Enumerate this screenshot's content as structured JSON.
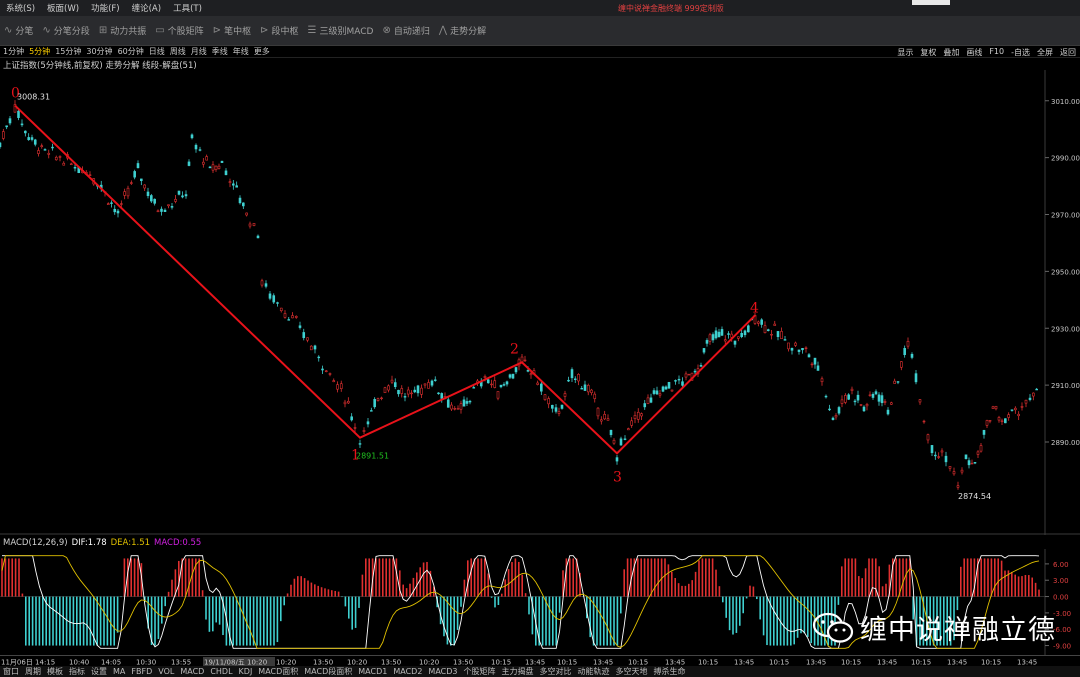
{
  "menu": {
    "items": [
      "系统(S)",
      "板面(W)",
      "功能(F)",
      "缠论(A)",
      "工具(T)"
    ],
    "center_text": "缠中说禅金融终端  999定制版"
  },
  "toolbar": {
    "items": [
      {
        "label": "分笔",
        "icon": "stroke-icon"
      },
      {
        "label": "分笔分段",
        "icon": "segment-icon"
      },
      {
        "label": "动力共振",
        "icon": "grid-icon"
      },
      {
        "label": "个股矩阵",
        "icon": "matrix-icon"
      },
      {
        "label": "笔中枢",
        "icon": "pivot-icon"
      },
      {
        "label": "段中枢",
        "icon": "pivot-icon"
      },
      {
        "label": "三级别MACD",
        "icon": "table-icon"
      },
      {
        "label": "自动递归",
        "icon": "recursion-icon"
      },
      {
        "label": "走势分解",
        "icon": "trend-icon"
      }
    ]
  },
  "periods": {
    "items": [
      "1分钟",
      "5分钟",
      "15分钟",
      "30分钟",
      "60分钟",
      "日线",
      "周线",
      "月线",
      "季线",
      "年线",
      "更多"
    ],
    "active": "5分钟",
    "right": [
      "显示",
      "复权",
      "叠加",
      "画线",
      "F10",
      "-自选",
      "全屏",
      "返回"
    ]
  },
  "chart_title": "上证指数(5分钟线,前复权) 走势分解 线段-解盘(51)",
  "colors": {
    "accent": "#ffd000",
    "segment_line": "#e8121a",
    "up": "#e03030",
    "down": "#3fd0d0",
    "dif": "#ffffff",
    "dea": "#e0c000",
    "macd_label": "#d020e0",
    "price_low_label": "#20c020"
  },
  "chart_data": [
    {
      "type": "candlestick",
      "yaxis_ticks": [
        "3010.00",
        "2990.00",
        "2970.00",
        "2950.00",
        "2930.00",
        "2910.00",
        "2890.00"
      ],
      "ylim": [
        2858,
        3018
      ],
      "segment_points": [
        {
          "label": "0",
          "x": 15,
          "y": 3008.31
        },
        {
          "label": "1",
          "x": 360,
          "y": 2891.51
        },
        {
          "label": "2",
          "x": 522,
          "y": 2918.0
        },
        {
          "label": "3",
          "x": 617,
          "y": 2886.0
        },
        {
          "label": "4",
          "x": 755,
          "y": 2934.5
        }
      ],
      "price_labels": [
        {
          "text": "3008.31",
          "value": 3008.31
        },
        {
          "text": "2891.51",
          "value": 2891.51
        },
        {
          "text": "2874.54",
          "value": 2874.54
        }
      ],
      "price_path": [
        [
          0,
          2995
        ],
        [
          10,
          3004
        ],
        [
          15,
          3008.31
        ],
        [
          22,
          3002
        ],
        [
          32,
          2996
        ],
        [
          45,
          2992
        ],
        [
          60,
          2990
        ],
        [
          75,
          2987
        ],
        [
          90,
          2985
        ],
        [
          105,
          2978
        ],
        [
          118,
          2970
        ],
        [
          128,
          2978
        ],
        [
          138,
          2986
        ],
        [
          148,
          2978
        ],
        [
          158,
          2972
        ],
        [
          172,
          2974
        ],
        [
          186,
          2978
        ],
        [
          192,
          2996
        ],
        [
          200,
          2992
        ],
        [
          210,
          2986
        ],
        [
          222,
          2988
        ],
        [
          230,
          2983
        ],
        [
          240,
          2976
        ],
        [
          250,
          2968
        ],
        [
          258,
          2964
        ],
        [
          262,
          2946
        ],
        [
          270,
          2942
        ],
        [
          285,
          2936
        ],
        [
          300,
          2930
        ],
        [
          315,
          2922
        ],
        [
          330,
          2914
        ],
        [
          345,
          2906
        ],
        [
          355,
          2896
        ],
        [
          360,
          2891.51
        ],
        [
          368,
          2896
        ],
        [
          378,
          2906
        ],
        [
          392,
          2912
        ],
        [
          405,
          2906
        ],
        [
          418,
          2908
        ],
        [
          432,
          2912
        ],
        [
          445,
          2906
        ],
        [
          458,
          2900
        ],
        [
          470,
          2906
        ],
        [
          485,
          2913
        ],
        [
          498,
          2908
        ],
        [
          510,
          2913
        ],
        [
          522,
          2918
        ],
        [
          534,
          2914
        ],
        [
          545,
          2906
        ],
        [
          556,
          2900
        ],
        [
          565,
          2905
        ],
        [
          572,
          2914
        ],
        [
          585,
          2910
        ],
        [
          598,
          2902
        ],
        [
          608,
          2896
        ],
        [
          617,
          2886
        ],
        [
          625,
          2892
        ],
        [
          635,
          2898
        ],
        [
          648,
          2904
        ],
        [
          660,
          2908
        ],
        [
          672,
          2910
        ],
        [
          686,
          2912
        ],
        [
          698,
          2916
        ],
        [
          710,
          2926
        ],
        [
          722,
          2928
        ],
        [
          735,
          2926
        ],
        [
          745,
          2928
        ],
        [
          755,
          2934.5
        ],
        [
          765,
          2931
        ],
        [
          778,
          2928
        ],
        [
          792,
          2924
        ],
        [
          806,
          2922
        ],
        [
          818,
          2916
        ],
        [
          826,
          2908
        ],
        [
          833,
          2898
        ],
        [
          842,
          2904
        ],
        [
          852,
          2908
        ],
        [
          864,
          2902
        ],
        [
          876,
          2908
        ],
        [
          888,
          2902
        ],
        [
          898,
          2912
        ],
        [
          908,
          2926
        ],
        [
          916,
          2914
        ],
        [
          924,
          2898
        ],
        [
          932,
          2888
        ],
        [
          942,
          2886
        ],
        [
          950,
          2882
        ],
        [
          958,
          2874.54
        ],
        [
          966,
          2884
        ],
        [
          975,
          2882
        ],
        [
          984,
          2892
        ],
        [
          993,
          2902
        ],
        [
          1002,
          2897
        ],
        [
          1012,
          2900
        ],
        [
          1022,
          2902
        ],
        [
          1030,
          2905
        ],
        [
          1040,
          2907
        ]
      ],
      "time_labels": [
        "11月06日 14:15",
        "10:40",
        "14:05",
        "10:30",
        "13:55",
        "19/11/08/五 10:20",
        "10:20",
        "13:50",
        "10:20",
        "13:50",
        "10:20",
        "13:50",
        "10:15",
        "13:45",
        "10:15",
        "13:45",
        "10:15",
        "13:45",
        "10:15",
        "13:45",
        "10:15",
        "13:45",
        "10:15",
        "13:45",
        "10:15",
        "13:45"
      ]
    },
    {
      "type": "bar",
      "name": "MACD(12,26,9)",
      "dif": "1.78",
      "dea": "1.51",
      "macd": "0.55",
      "yaxis_ticks": [
        "6.00",
        "3.00",
        "0.00",
        "-3.00",
        "-6.00",
        "-9.00"
      ],
      "ylim": [
        -10,
        8
      ]
    }
  ],
  "macd_label": {
    "name": "MACD(12,26,9)",
    "dif_label": "DIF:1.78",
    "dea_label": "DEA:1.51",
    "macd_label": "MACD:0.55"
  },
  "bottom_tabs": [
    "窗口",
    "周期",
    "模板",
    "指标",
    "设置",
    "MA",
    "FBFD",
    "VOL",
    "MACD",
    "CHDL",
    "KDJ",
    "MACD面积",
    "MACD段面积",
    "MACD1",
    "MACD2",
    "MACD3",
    "个股矩阵",
    "主力揭盘",
    "多空对比",
    "动能轨迹",
    "多空天地",
    "搏杀生命"
  ],
  "watermark": {
    "text": "缠中说禅融立德",
    "icon": "wechat-icon"
  }
}
